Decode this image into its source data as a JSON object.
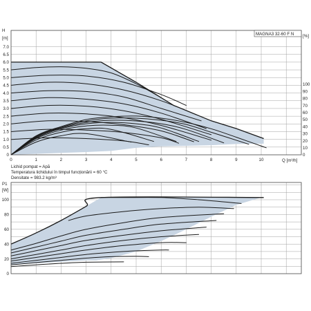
{
  "chart_data": [
    {
      "type": "line",
      "model_label": "MAGNA3 32-60 F N",
      "y_axis_symbol": "H",
      "y_unit": "[m]",
      "x_label": "Q [m³/h]",
      "eta_unit": "[%]",
      "xlim": [
        0,
        11
      ],
      "ylim": [
        0,
        7.0
      ],
      "eta_lim": [
        0,
        110
      ],
      "x_ticks": [
        "0",
        "1",
        "2",
        "3",
        "4",
        "5",
        "6",
        "7",
        "8",
        "9",
        "10"
      ],
      "y_ticks": [
        "0",
        "0.5",
        "1.0",
        "1.5",
        "2.0",
        "2.5",
        "3.0",
        "3.5",
        "4.0",
        "4.5",
        "5.0",
        "5.5",
        "6.0",
        "6.5",
        "7.0"
      ],
      "eta_ticks": [
        "0",
        "10",
        "20",
        "30",
        "40",
        "50",
        "60",
        "70",
        "80",
        "90",
        "100"
      ],
      "grid": true,
      "info_lines": [
        "Lichid pompat = Apă",
        "Temperatura lichidului în timpul funcționării = 60 °C",
        "Densitate = 983.2 kg/m³"
      ],
      "colors": {
        "region": "#c8d5e3",
        "curve": "#1a1a1a",
        "grid": "#a0a0a0"
      },
      "max_curve": [
        [
          0,
          6.0
        ],
        [
          3.6,
          6.0
        ],
        [
          5,
          4.7
        ],
        [
          6.5,
          3.2
        ],
        [
          8,
          2.2
        ],
        [
          9,
          1.7
        ],
        [
          10.1,
          1.05
        ]
      ],
      "head_curves": [
        {
          "x": [
            0,
            1,
            2,
            3,
            4,
            5,
            6
          ],
          "y": [
            5.5,
            5.65,
            5.7,
            5.6,
            5.3,
            4.6,
            3.7
          ]
        },
        {
          "x": [
            0,
            1.5,
            3,
            4.5,
            6,
            7
          ],
          "y": [
            5.0,
            5.15,
            5.1,
            4.7,
            3.9,
            3.2
          ]
        },
        {
          "x": [
            0,
            1.5,
            3,
            4.5,
            6,
            7.4
          ],
          "y": [
            4.5,
            4.7,
            4.6,
            4.2,
            3.5,
            2.6
          ]
        },
        {
          "x": [
            0,
            1.5,
            3,
            4.5,
            6,
            7.6
          ],
          "y": [
            4.0,
            4.15,
            4.1,
            3.75,
            3.0,
            2.2
          ]
        },
        {
          "x": [
            0,
            1.5,
            3,
            4.5,
            6,
            7.8
          ],
          "y": [
            3.5,
            3.7,
            3.6,
            3.3,
            2.7,
            1.7
          ]
        },
        {
          "x": [
            0,
            1.5,
            3,
            4.5,
            6,
            8.0
          ],
          "y": [
            3.0,
            3.2,
            3.15,
            2.85,
            2.3,
            1.3
          ]
        },
        {
          "x": [
            0,
            1.5,
            3,
            4.5,
            6,
            8.0
          ],
          "y": [
            2.5,
            2.7,
            2.65,
            2.4,
            1.9,
            0.95
          ]
        },
        {
          "x": [
            0,
            1.5,
            3,
            4.5,
            6,
            7.3
          ],
          "y": [
            2.0,
            2.2,
            2.15,
            1.95,
            1.55,
            0.85
          ]
        },
        {
          "x": [
            0,
            1.5,
            3,
            4.5,
            6,
            6.7
          ],
          "y": [
            1.5,
            1.65,
            1.6,
            1.45,
            1.1,
            0.75
          ]
        },
        {
          "x": [
            0,
            1.5,
            3,
            4.5,
            5.5
          ],
          "y": [
            1.0,
            1.1,
            1.05,
            0.9,
            0.65
          ]
        }
      ],
      "efficiency_curves": [
        {
          "x": [
            0,
            1,
            2,
            3,
            4,
            5,
            6,
            7,
            8,
            9,
            10.2
          ],
          "eta": [
            0,
            27,
            40,
            50,
            54,
            55,
            52,
            46,
            37,
            25,
            10
          ]
        },
        {
          "x": [
            0,
            1,
            2,
            3,
            4,
            5,
            6,
            7,
            8,
            9.5
          ],
          "eta": [
            0,
            26,
            39,
            48,
            52,
            52,
            49,
            43,
            32,
            15
          ]
        },
        {
          "x": [
            0,
            1,
            2,
            3,
            4,
            5,
            6,
            7,
            8.5
          ],
          "eta": [
            0,
            25,
            38,
            46,
            49,
            48,
            44,
            36,
            17
          ]
        },
        {
          "x": [
            0,
            1,
            2,
            3,
            4,
            5,
            6,
            7.5
          ],
          "eta": [
            0,
            24,
            37,
            44,
            46,
            44,
            38,
            19
          ]
        },
        {
          "x": [
            0,
            1,
            2,
            3,
            4,
            5,
            6.6
          ],
          "eta": [
            0,
            23,
            35,
            41,
            42,
            38,
            19
          ]
        },
        {
          "x": [
            0,
            1,
            2,
            3,
            4,
            5.7
          ],
          "eta": [
            0,
            21,
            32,
            37,
            36,
            19
          ]
        },
        {
          "x": [
            0,
            1,
            2,
            3,
            4.8
          ],
          "eta": [
            0,
            18,
            27,
            30,
            18
          ]
        }
      ]
    },
    {
      "type": "line",
      "y_axis_symbol": "P1",
      "y_unit": "[W]",
      "xlim": [
        0,
        11
      ],
      "ylim": [
        0,
        110
      ],
      "x_ticks": [
        "0",
        "1",
        "2",
        "3",
        "4",
        "5",
        "6",
        "7",
        "8",
        "9",
        "10"
      ],
      "y_ticks": [
        "0",
        "20",
        "40",
        "60",
        "80",
        "100"
      ],
      "grid": true,
      "max_curve": [
        [
          0,
          40
        ],
        [
          1,
          55
        ],
        [
          2,
          72
        ],
        [
          3,
          91
        ],
        [
          3.6,
          103
        ],
        [
          10.1,
          103
        ]
      ],
      "bottom_boundary": [
        [
          0,
          12
        ],
        [
          1,
          14
        ],
        [
          2,
          16
        ],
        [
          3,
          18
        ],
        [
          3.4,
          18
        ],
        [
          4,
          21
        ],
        [
          5,
          30
        ],
        [
          6,
          44
        ],
        [
          7,
          60
        ],
        [
          8,
          77
        ],
        [
          9,
          93
        ],
        [
          10,
          103
        ]
      ],
      "power_curves": [
        {
          "x": [
            0,
            1,
            2,
            3,
            4.5
          ],
          "y": [
            9.5,
            12,
            14,
            15.5,
            16
          ]
        },
        {
          "x": [
            0,
            1,
            2,
            3,
            4.0,
            5.0,
            5.5
          ],
          "y": [
            12,
            15,
            18,
            21,
            23,
            23.5,
            23
          ]
        },
        {
          "x": [
            0,
            1,
            2,
            3,
            4.5,
            6.0,
            6.3
          ],
          "y": [
            14,
            18,
            22,
            26,
            30,
            32,
            32
          ]
        },
        {
          "x": [
            0,
            1,
            2,
            3,
            4.5,
            6.0,
            7.0
          ],
          "y": [
            17,
            22,
            27,
            32,
            38,
            42,
            42
          ]
        },
        {
          "x": [
            0,
            1,
            2,
            3,
            4.5,
            6.0,
            7.5
          ],
          "y": [
            20,
            26,
            32,
            38,
            45,
            50,
            53
          ]
        },
        {
          "x": [
            0,
            1,
            2,
            3,
            4.5,
            6.0,
            7.8
          ],
          "y": [
            24,
            31,
            38,
            45,
            52,
            58,
            63
          ]
        },
        {
          "x": [
            0,
            1,
            2,
            3,
            4.5,
            6.0,
            8.2
          ],
          "y": [
            28,
            36,
            44,
            52,
            60,
            67,
            72
          ]
        },
        {
          "x": [
            0,
            1,
            2,
            3,
            4.5,
            6.0,
            8.5
          ],
          "y": [
            32,
            41,
            51,
            60,
            69,
            76,
            81
          ]
        },
        {
          "x": [
            2.3,
            3,
            4.5,
            6,
            7.5,
            8.9
          ],
          "y": [
            72,
            78,
            84,
            88,
            90,
            88
          ]
        },
        {
          "x": [
            3.6,
            4.5,
            6,
            7.5,
            9.2
          ],
          "y": [
            103,
            103,
            103,
            100,
            95
          ]
        }
      ]
    }
  ]
}
